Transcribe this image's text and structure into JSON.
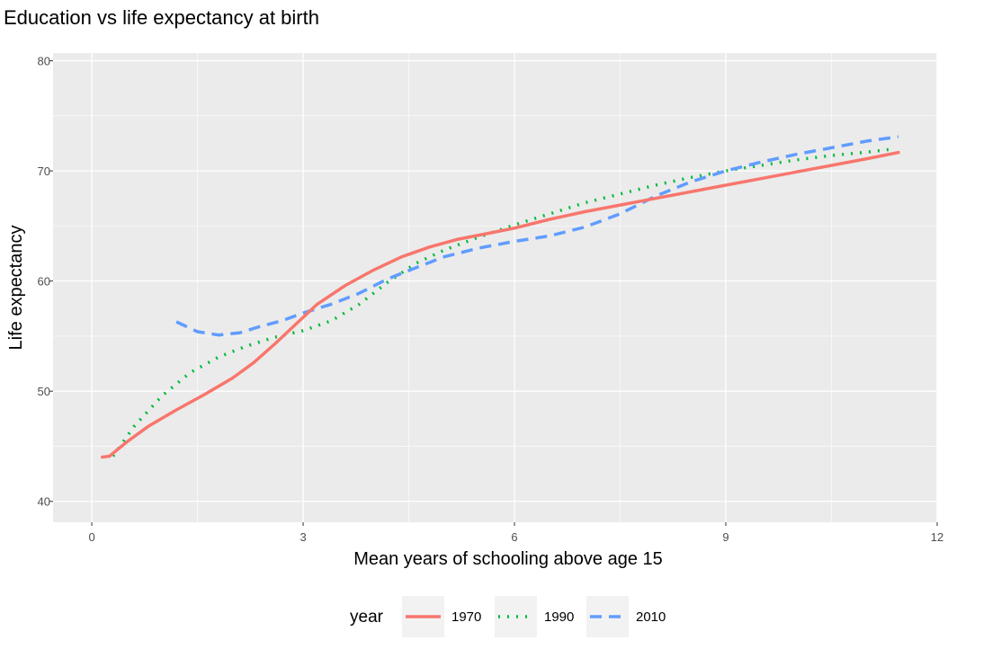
{
  "chart_data": {
    "type": "line",
    "title": "Education vs life expectancy at birth",
    "xlabel": "Mean years of schooling above age 15",
    "ylabel": "Life expectancy",
    "xlim": [
      -0.55,
      12.0
    ],
    "ylim": [
      38.1,
      80.7
    ],
    "x_ticks": [
      0,
      3,
      6,
      9,
      12
    ],
    "y_ticks": [
      40,
      50,
      60,
      70,
      80
    ],
    "grid": true,
    "legend": {
      "title": "year",
      "position": "bottom"
    },
    "series": [
      {
        "name": "1970",
        "color": "#F8766D",
        "dash": "solid",
        "x": [
          0.13,
          0.25,
          0.5,
          0.8,
          1.2,
          1.6,
          2.0,
          2.3,
          2.6,
          2.9,
          3.2,
          3.6,
          4.0,
          4.4,
          4.8,
          5.2,
          5.6,
          6.0,
          6.5,
          7.0,
          7.5,
          8.0,
          8.5,
          9.0,
          9.5,
          10.0,
          10.5,
          11.0,
          11.47
        ],
        "y": [
          44.0,
          44.1,
          45.4,
          46.8,
          48.3,
          49.7,
          51.2,
          52.6,
          54.3,
          56.1,
          57.9,
          59.6,
          61.0,
          62.2,
          63.1,
          63.8,
          64.3,
          64.8,
          65.6,
          66.3,
          66.9,
          67.5,
          68.1,
          68.7,
          69.3,
          69.9,
          70.5,
          71.1,
          71.7
        ]
      },
      {
        "name": "1990",
        "color": "#00BA38",
        "dash": "dotted",
        "x": [
          0.3,
          0.6,
          1.0,
          1.4,
          1.8,
          2.2,
          2.6,
          3.0,
          3.4,
          3.8,
          4.2,
          4.6,
          5.0,
          5.5,
          6.0,
          6.5,
          7.0,
          7.5,
          8.0,
          8.5,
          9.0,
          9.5,
          10.0,
          10.5,
          11.0,
          11.4
        ],
        "y": [
          44.1,
          46.8,
          49.6,
          51.7,
          53.1,
          54.1,
          54.9,
          55.5,
          56.4,
          57.9,
          59.9,
          61.6,
          62.8,
          64.0,
          65.1,
          66.1,
          67.1,
          67.9,
          68.7,
          69.4,
          70.0,
          70.5,
          71.0,
          71.4,
          71.7,
          72.0
        ]
      },
      {
        "name": "2010",
        "color": "#619CFF",
        "dash": "dashed",
        "x": [
          1.2,
          1.5,
          1.8,
          2.1,
          2.4,
          2.7,
          3.0,
          3.4,
          3.8,
          4.2,
          4.6,
          5.0,
          5.5,
          6.0,
          6.5,
          7.0,
          7.5,
          8.0,
          8.5,
          9.0,
          9.5,
          10.0,
          10.5,
          11.0,
          11.45
        ],
        "y": [
          56.3,
          55.4,
          55.1,
          55.3,
          55.9,
          56.4,
          57.1,
          57.9,
          58.9,
          60.2,
          61.2,
          62.2,
          63.0,
          63.6,
          64.1,
          64.9,
          66.1,
          67.7,
          69.0,
          70.0,
          70.8,
          71.5,
          72.1,
          72.7,
          73.1
        ]
      }
    ]
  }
}
